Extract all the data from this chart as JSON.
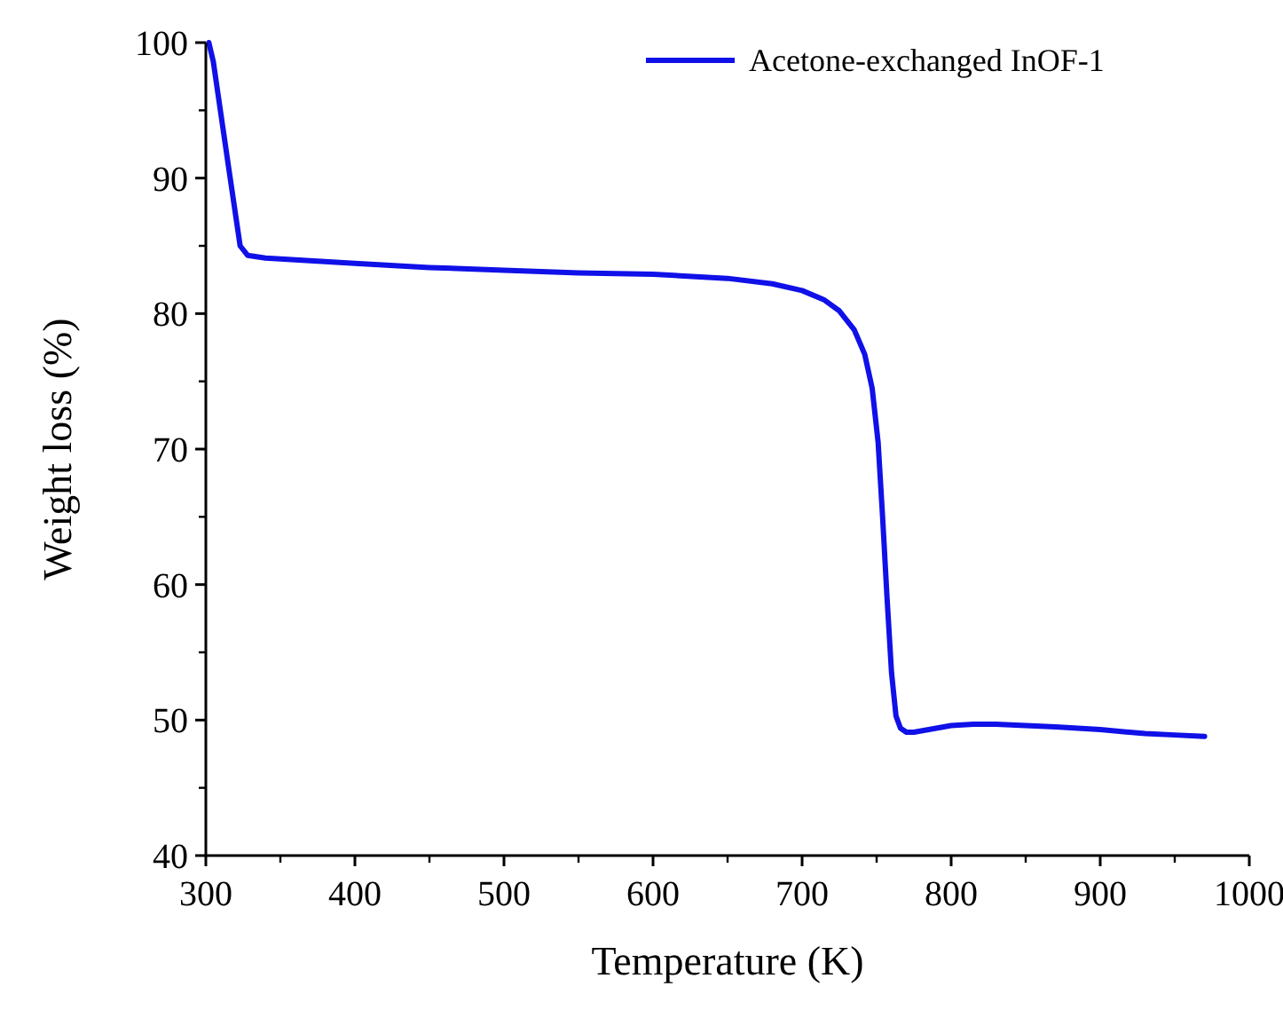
{
  "chart_data": {
    "type": "line",
    "xlabel": "Temperature (K)",
    "ylabel": "Weight loss (%)",
    "xlim": [
      300,
      1000
    ],
    "xticks": [
      300,
      400,
      500,
      600,
      700,
      800,
      900,
      1000
    ],
    "ylim": [
      40,
      100
    ],
    "yticks": [
      40,
      50,
      60,
      70,
      80,
      90,
      100
    ],
    "legend": "top right",
    "series": [
      {
        "name": "Acetone-exchanged InOF-1",
        "color": "#1010e8",
        "x": [
          302,
          305,
          315,
          323,
          328,
          340,
          400,
          450,
          500,
          550,
          600,
          650,
          680,
          700,
          715,
          725,
          735,
          742,
          747,
          751,
          754,
          757,
          760,
          763,
          766,
          770,
          775,
          780,
          790,
          800,
          815,
          830,
          850,
          870,
          900,
          930,
          950,
          970
        ],
        "values": [
          100,
          98.6,
          91,
          85,
          84.3,
          84.1,
          83.7,
          83.4,
          83.2,
          83.0,
          82.9,
          82.6,
          82.2,
          81.7,
          81.0,
          80.2,
          78.8,
          77.0,
          74.5,
          70.5,
          65,
          59,
          53.5,
          50.3,
          49.4,
          49.1,
          49.1,
          49.2,
          49.4,
          49.6,
          49.7,
          49.7,
          49.6,
          49.5,
          49.3,
          49.0,
          48.9,
          48.8
        ]
      }
    ]
  }
}
